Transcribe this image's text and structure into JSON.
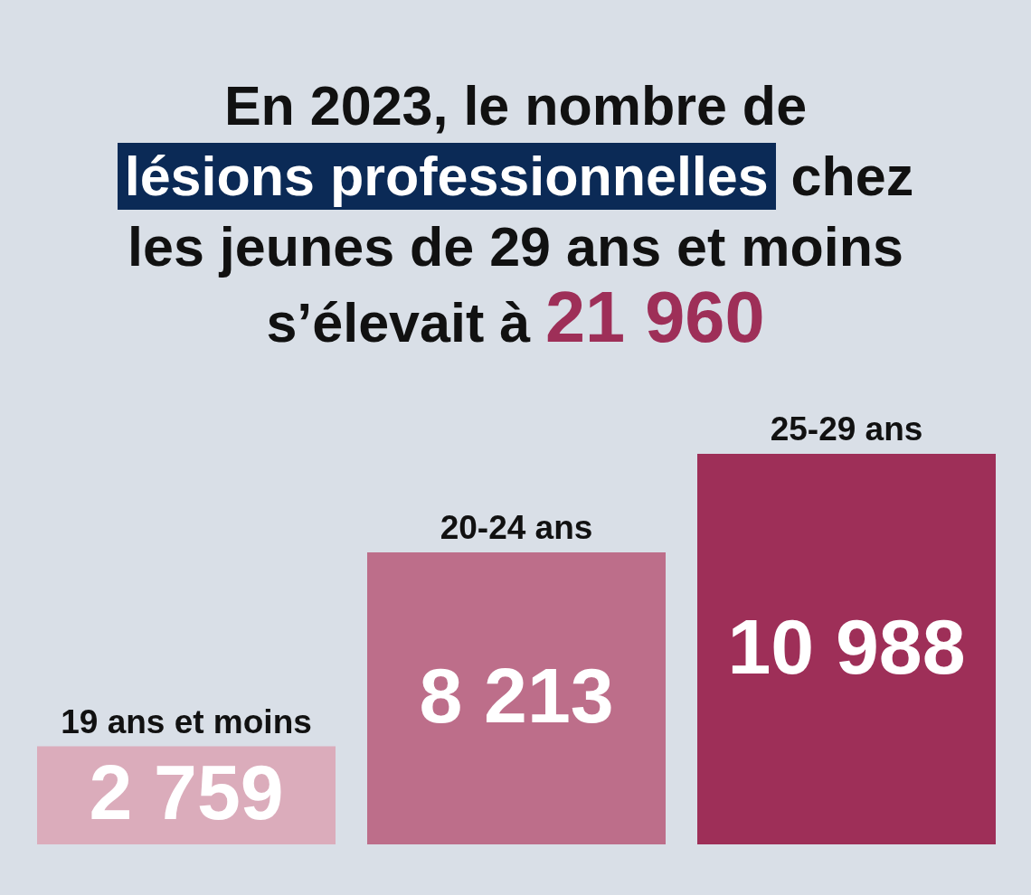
{
  "chart_data": {
    "type": "bar",
    "title": "En 2023, le nombre de lésions professionnelles chez les jeunes de 29 ans et moins s’élevait à 21 960",
    "categories": [
      "19 ans et moins",
      "20-24 ans",
      "25-29 ans"
    ],
    "values": [
      2759,
      8213,
      10988
    ],
    "colors": [
      "#dbacbb",
      "#bd6e8a",
      "#9e2f58"
    ],
    "value_labels": [
      "2 759",
      "8 213",
      "10 988"
    ],
    "tick_labels": "x"
  }
}
